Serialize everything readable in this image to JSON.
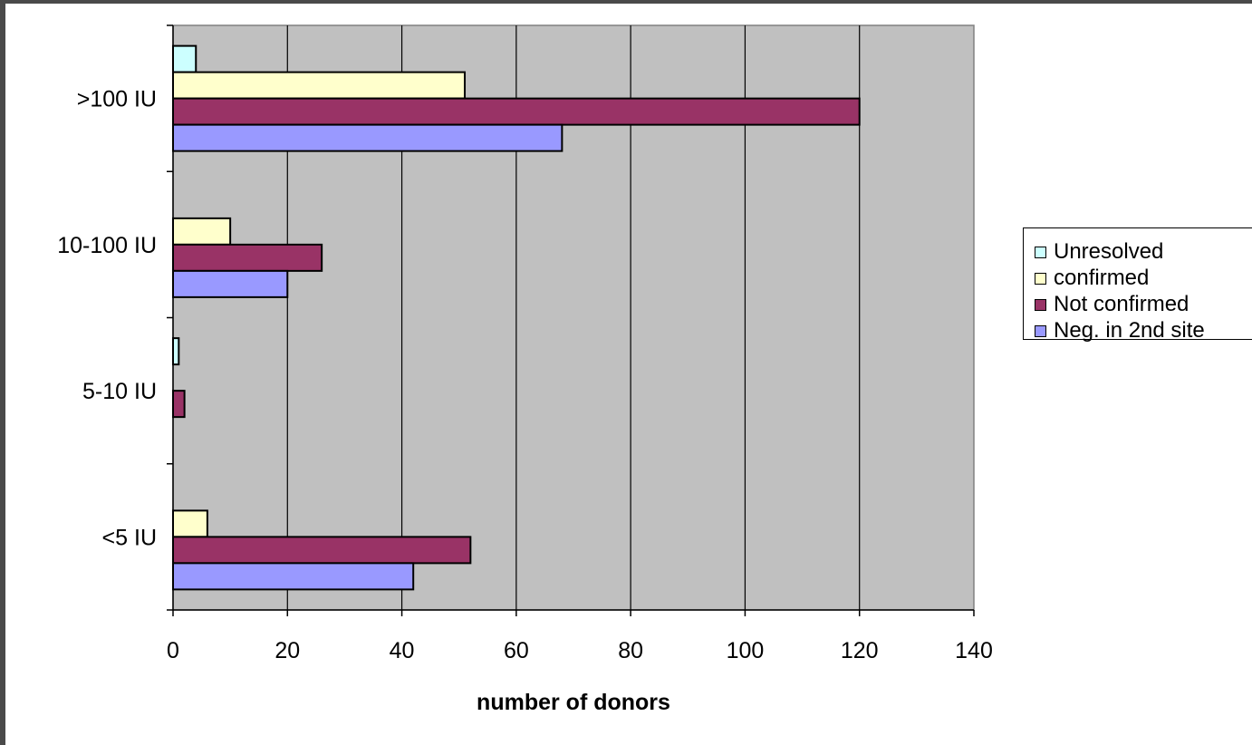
{
  "chart_data": {
    "type": "bar",
    "orientation": "horizontal",
    "categories": [
      ">100 IU",
      "10-100 IU",
      "5-10 IU",
      "<5 IU"
    ],
    "series": [
      {
        "name": "Unresolved",
        "color": "#ccffff",
        "values": [
          4,
          0,
          1,
          0
        ]
      },
      {
        "name": "confirmed",
        "color": "#ffffcc",
        "values": [
          51,
          10,
          0,
          6
        ]
      },
      {
        "name": "Not confirmed",
        "color": "#993366",
        "values": [
          120,
          26,
          2,
          52
        ]
      },
      {
        "name": "Neg. in 2nd site",
        "color": "#9999ff",
        "values": [
          68,
          20,
          0,
          42
        ]
      }
    ],
    "xlabel": "number of donors",
    "ylabel": "",
    "xlim": [
      0,
      140
    ],
    "xticks": [
      0,
      20,
      40,
      60,
      80,
      100,
      120,
      140
    ],
    "grid": true,
    "plot_background": "#c0c0c0",
    "legend_position": "right"
  }
}
